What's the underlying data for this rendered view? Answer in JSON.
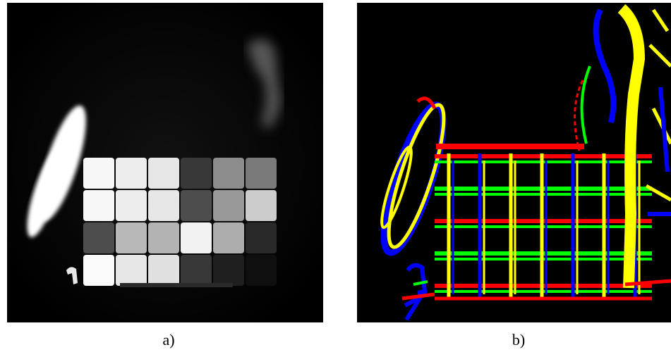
{
  "captions": {
    "a": "a)",
    "b": "b)"
  },
  "panel_a": {
    "grid_rows": [
      [
        0.97,
        0.93,
        0.9,
        0.22,
        0.55,
        0.48
      ],
      [
        0.97,
        0.93,
        0.9,
        0.3,
        0.6,
        0.8
      ],
      [
        0.3,
        0.72,
        0.7,
        0.95,
        0.68,
        0.16
      ],
      [
        0.98,
        0.9,
        0.88,
        0.22,
        0.12,
        0.06
      ]
    ]
  },
  "colors": {
    "background": "#000000",
    "red": "#ff0000",
    "green": "#00ff00",
    "blue": "#0000ff",
    "yellow": "#ffff00"
  }
}
